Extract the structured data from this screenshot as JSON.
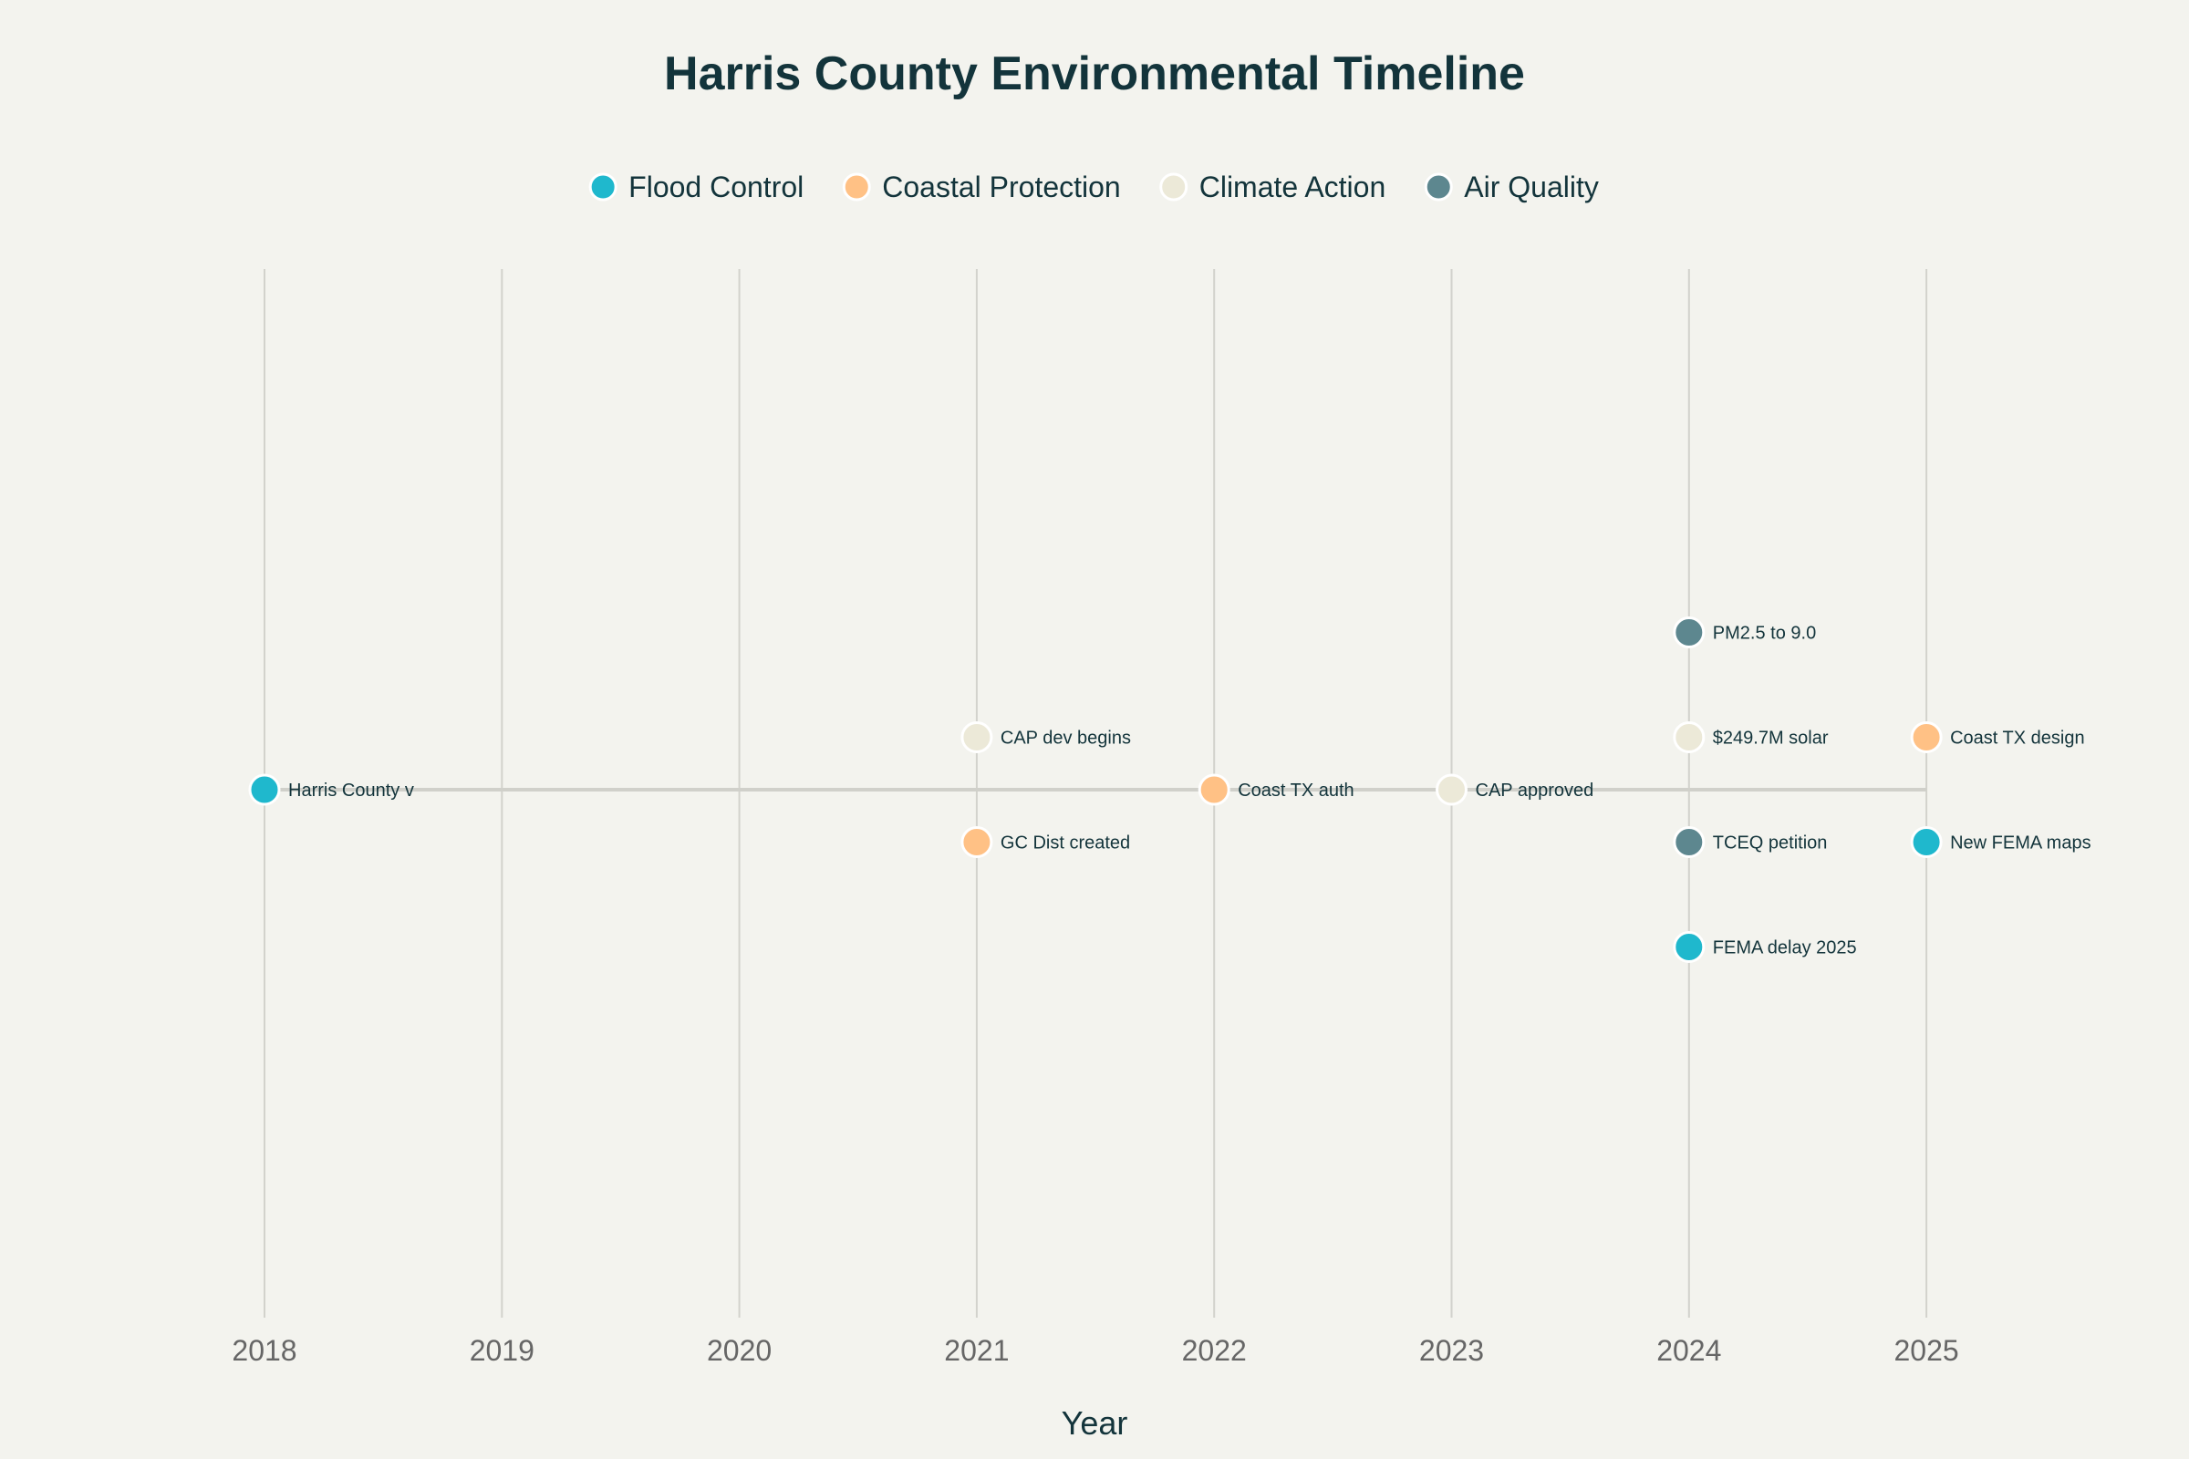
{
  "chart_data": {
    "type": "scatter",
    "title": "Harris County Environmental Timeline",
    "xlabel": "Year",
    "ylabel": "",
    "xlim": [
      2017.95,
      2025.85
    ],
    "ylim": [
      -10,
      10
    ],
    "x_ticks": [
      "2018",
      "2019",
      "2020",
      "2021",
      "2022",
      "2023",
      "2024",
      "2025"
    ],
    "grid": true,
    "legend_position": "top-center",
    "timeline_range": [
      2018,
      2025
    ],
    "series": [
      {
        "name": "Flood Control",
        "color": "#1fb8cd",
        "points": [
          {
            "x": 2018,
            "y": 0,
            "label": "Harris County v"
          },
          {
            "x": 2024,
            "y": -3,
            "label": "FEMA delay 2025"
          },
          {
            "x": 2025,
            "y": -1,
            "label": "New FEMA maps"
          }
        ]
      },
      {
        "name": "Coastal Protection",
        "color": "#ffc185",
        "points": [
          {
            "x": 2021,
            "y": -1,
            "label": "GC Dist created"
          },
          {
            "x": 2022,
            "y": 0,
            "label": "Coast TX auth"
          },
          {
            "x": 2025,
            "y": 1,
            "label": "Coast TX design"
          }
        ]
      },
      {
        "name": "Climate Action",
        "color": "#ece9d8",
        "points": [
          {
            "x": 2021,
            "y": 1,
            "label": "CAP dev begins"
          },
          {
            "x": 2023,
            "y": 0,
            "label": "CAP approved"
          },
          {
            "x": 2024,
            "y": 1,
            "label": "$249.7M solar"
          }
        ]
      },
      {
        "name": "Air Quality",
        "color": "#5d878f",
        "points": [
          {
            "x": 2024,
            "y": 3,
            "label": "PM2.5 to 9.0"
          },
          {
            "x": 2024,
            "y": -1,
            "label": "TCEQ petition"
          }
        ]
      }
    ]
  }
}
